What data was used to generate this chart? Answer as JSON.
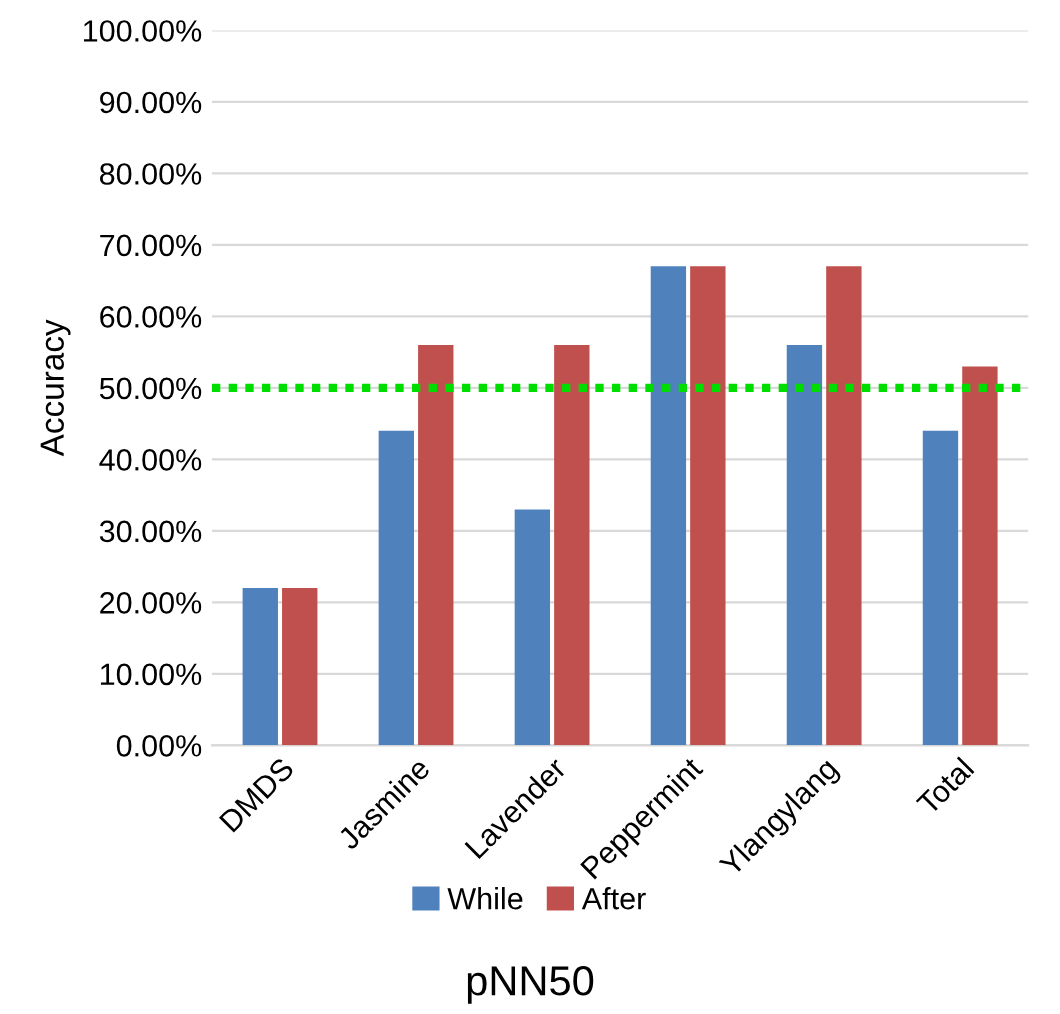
{
  "chart_data": {
    "type": "bar",
    "title": "pNN50",
    "ylabel": "Accuracy",
    "categories": [
      "DMDS",
      "Jasmine",
      "Lavender",
      "Peppermint",
      "Ylangylang",
      "Total"
    ],
    "series": [
      {
        "name": "While",
        "color": "#4f81bd",
        "values": [
          22,
          44,
          33,
          67,
          56,
          44
        ]
      },
      {
        "name": "After",
        "color": "#c0504d",
        "values": [
          22,
          56,
          56,
          67,
          67,
          53
        ]
      }
    ],
    "ylim": [
      0,
      100
    ],
    "yticks": [
      {
        "value": 0,
        "label": "0.00%"
      },
      {
        "value": 10,
        "label": "10.00%"
      },
      {
        "value": 20,
        "label": "20.00%"
      },
      {
        "value": 30,
        "label": "30.00%"
      },
      {
        "value": 40,
        "label": "40.00%"
      },
      {
        "value": 50,
        "label": "50.00%"
      },
      {
        "value": 60,
        "label": "60.00%"
      },
      {
        "value": 70,
        "label": "70.00%"
      },
      {
        "value": 80,
        "label": "80.00%"
      },
      {
        "value": 90,
        "label": "90.00%"
      },
      {
        "value": 100,
        "label": "100.00%"
      }
    ],
    "ref_lines": [
      {
        "axis": "y",
        "value": 50,
        "label": null,
        "color": "#00dd00",
        "line_style": "dotted"
      }
    ],
    "grid": "y",
    "legend": "bottom"
  }
}
